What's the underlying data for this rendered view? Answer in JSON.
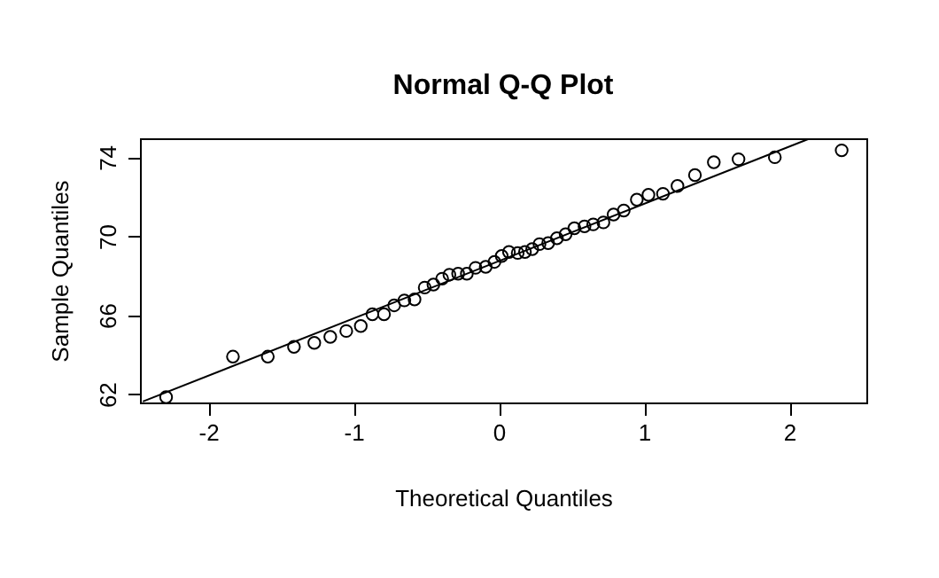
{
  "chart_data": {
    "type": "scatter",
    "title": "Normal Q-Q Plot",
    "xlabel": "Theoretical Quantiles",
    "ylabel": "Sample Quantiles",
    "xlim": [
      -2.47,
      2.53
    ],
    "ylim": [
      61.58,
      74.96
    ],
    "xticks": [
      -2,
      -1,
      0,
      1,
      2
    ],
    "yticks": [
      62,
      66,
      70,
      74
    ],
    "grid": false,
    "marker": "circle",
    "series": [
      {
        "color": "#000000",
        "x": [
          -2.29,
          -1.83,
          -1.59,
          -1.41,
          -1.27,
          -1.16,
          -1.05,
          -0.95,
          -0.87,
          -0.79,
          -0.72,
          -0.65,
          -0.58,
          -0.51,
          -0.45,
          -0.39,
          -0.34,
          -0.28,
          -0.22,
          -0.16,
          -0.09,
          -0.03,
          0.02,
          0.07,
          0.13,
          0.18,
          0.23,
          0.28,
          0.34,
          0.4,
          0.46,
          0.52,
          0.59,
          0.65,
          0.72,
          0.79,
          0.86,
          0.95,
          1.03,
          1.13,
          1.23,
          1.35,
          1.48,
          1.65,
          1.9,
          2.36
        ],
        "values": [
          61.85,
          63.9,
          63.9,
          64.4,
          64.6,
          64.9,
          65.2,
          65.45,
          66.05,
          66.05,
          66.5,
          66.75,
          66.8,
          67.4,
          67.55,
          67.85,
          68.05,
          68.1,
          68.1,
          68.4,
          68.45,
          68.7,
          69.0,
          69.2,
          69.15,
          69.2,
          69.35,
          69.6,
          69.65,
          69.9,
          70.1,
          70.4,
          70.5,
          70.6,
          70.7,
          71.1,
          71.3,
          71.85,
          72.1,
          72.15,
          72.55,
          73.1,
          73.75,
          73.9,
          74.0,
          74.35
        ]
      },
      {
        "type": "line",
        "color": "#000000",
        "marker": "none",
        "line_style": "solid",
        "x": [
          -2.45,
          2.14
        ],
        "values": [
          61.63,
          74.95
        ]
      }
    ]
  }
}
